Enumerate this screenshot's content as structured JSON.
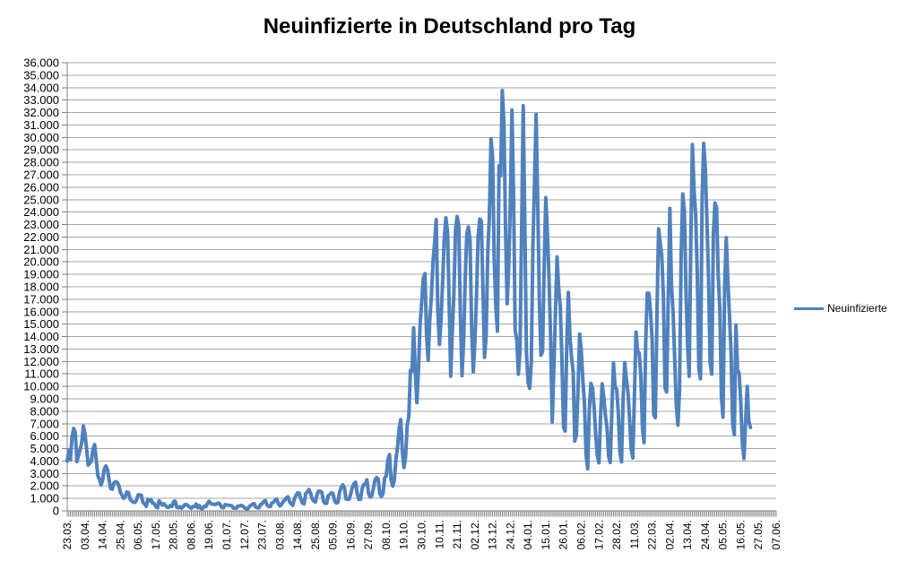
{
  "chart_data": {
    "type": "line",
    "title": "Neuinfizierte in Deutschland pro Tag",
    "legend_position": "right",
    "grid": true,
    "ylim": [
      0,
      36000
    ],
    "ytick_step": 1000,
    "ytick_labels": [
      "36.000",
      "35.000",
      "34.000",
      "33.000",
      "32.000",
      "31.000",
      "30.000",
      "29.000",
      "28.000",
      "27.000",
      "26.000",
      "25.000",
      "24.000",
      "23.000",
      "22.000",
      "21.000",
      "20.000",
      "19.000",
      "18.000",
      "17.000",
      "16.000",
      "15.000",
      "14.000",
      "13.000",
      "12.000",
      "11.000",
      "10.000",
      "9.000",
      "8.000",
      "7.000",
      "6.000",
      "5.000",
      "4.000",
      "3.000",
      "2.000",
      "1.000",
      "0"
    ],
    "xtick_labels": [
      "23.03.",
      "03.04.",
      "14.04.",
      "25.04.",
      "06.05.",
      "17.05.",
      "28.05.",
      "08.06.",
      "19.06.",
      "01.07.",
      "12.07.",
      "23.07.",
      "03.08.",
      "14.08.",
      "25.08.",
      "05.09.",
      "16.09.",
      "27.09.",
      "08.10.",
      "19.10.",
      "30.10.",
      "10.11.",
      "21.11.",
      "02.12.",
      "13.12.",
      "24.12.",
      "04.01.",
      "15.01.",
      "26.01.",
      "06.02.",
      "17.02.",
      "28.02.",
      "11.03.",
      "22.03.",
      "02.04.",
      "13.04.",
      "24.04.",
      "05.05.",
      "16.05.",
      "27.05.",
      "07.06."
    ],
    "xtick_every": 11,
    "x_axis_slots": 441,
    "colors": {
      "line": "#4F81BD",
      "grid": "#A6A6A6",
      "axis": "#808080",
      "text": "#000000"
    },
    "series": [
      {
        "name": "Neuinfizierte",
        "color": "#4F81BD",
        "first_point_label": "23.03.",
        "values": [
          4000,
          4850,
          4120,
          5940,
          6620,
          6300,
          3950,
          4450,
          4920,
          5450,
          6810,
          6170,
          5050,
          3680,
          3830,
          4000,
          4970,
          5320,
          4130,
          2820,
          2540,
          2080,
          2480,
          3380,
          3610,
          3310,
          2460,
          1780,
          1740,
          2240,
          2350,
          2300,
          2040,
          1500,
          1250,
          1000,
          1150,
          1510,
          1480,
          950,
          800,
          700,
          680,
          850,
          1280,
          1290,
          1250,
          670,
          560,
          360,
          930,
          800,
          910,
          620,
          580,
          340,
          240,
          800,
          640,
          460,
          570,
          430,
          290,
          290,
          430,
          360,
          740,
          780,
          290,
          240,
          330,
          210,
          340,
          500,
          510,
          410,
          300,
          210,
          350,
          340,
          550,
          250,
          420,
          190,
          190,
          380,
          340,
          580,
          770,
          600,
          540,
          540,
          500,
          580,
          630,
          480,
          260,
          250,
          500,
          470,
          450,
          440,
          420,
          220,
          240,
          210,
          390,
          400,
          440,
          380,
          250,
          160,
          160,
          350,
          440,
          530,
          580,
          300,
          250,
          240,
          520,
          570,
          770,
          820,
          480,
          340,
          340,
          630,
          680,
          870,
          950,
          580,
          400,
          510,
          740,
          870,
          1050,
          1130,
          720,
          560,
          440,
          970,
          1230,
          1450,
          1420,
          930,
          630,
          560,
          1390,
          1510,
          1710,
          1430,
          990,
          790,
          710,
          1280,
          1580,
          1570,
          1480,
          790,
          610,
          610,
          1220,
          1310,
          1450,
          1380,
          790,
          630,
          680,
          1500,
          1890,
          2090,
          1880,
          950,
          920,
          930,
          1410,
          1900,
          2190,
          2300,
          1350,
          920,
          930,
          1770,
          2120,
          2140,
          2500,
          1410,
          1110,
          1190,
          1800,
          2500,
          2670,
          2560,
          1380,
          1150,
          1380,
          2640,
          2830,
          4060,
          4520,
          2470,
          1980,
          2480,
          4120,
          5130,
          6640,
          7330,
          4720,
          3480,
          4330,
          6870,
          7600,
          11290,
          11240,
          14710,
          11180,
          8690,
          11410,
          14960,
          16770,
          18680,
          19060,
          14180,
          12100,
          15350,
          17210,
          19990,
          21510,
          23400,
          16020,
          13360,
          15330,
          18490,
          21870,
          23540,
          22460,
          16950,
          10820,
          14420,
          17560,
          22610,
          23650,
          22960,
          15740,
          10860,
          13550,
          18630,
          22270,
          22810,
          21700,
          14610,
          11170,
          13600,
          17270,
          22050,
          23450,
          23320,
          17770,
          12330,
          14050,
          20820,
          23680,
          29880,
          28440,
          20200,
          16360,
          14430,
          27730,
          26920,
          33770,
          31300,
          22770,
          16640,
          19530,
          24740,
          32200,
          25530,
          14460,
          13760,
          10980,
          12890,
          22460,
          32550,
          22920,
          12690,
          10320,
          9850,
          11900,
          21240,
          26390,
          31850,
          24690,
          16950,
          12500,
          12800,
          19600,
          25160,
          22370,
          18680,
          13880,
          7140,
          11370,
          15970,
          20400,
          17860,
          16420,
          12260,
          6730,
          6410,
          13200,
          17550,
          14020,
          12320,
          11190,
          5610,
          6110,
          9710,
          14210,
          12910,
          10490,
          8620,
          4540,
          3380,
          8070,
          10240,
          9860,
          8350,
          6110,
          4430,
          3860,
          7560,
          10210,
          9110,
          7680,
          6680,
          4370,
          3880,
          8010,
          11870,
          10000,
          9760,
          7890,
          4730,
          3940,
          9020,
          11910,
          10580,
          9560,
          7350,
          5010,
          4250,
          9150,
          14360,
          12830,
          12670,
          10790,
          6600,
          5480,
          13440,
          17500,
          17480,
          16030,
          13730,
          7710,
          7490,
          15810,
          22660,
          21570,
          20470,
          17180,
          9870,
          9550,
          17050,
          24300,
          18130,
          16000,
          12200,
          8500,
          6890,
          9680,
          20410,
          25460,
          24100,
          17860,
          13250,
          10810,
          21690,
          29430,
          25830,
          23800,
          19190,
          11440,
          10610,
          24880,
          29520,
          27540,
          23390,
          18770,
          11910,
          10980,
          22230,
          24740,
          24330,
          18940,
          16290,
          9160,
          7530,
          18030,
          21950,
          18490,
          15690,
          12660,
          6920,
          6130,
          14910,
          11340,
          11040,
          8770,
          5400,
          4200,
          7100,
          10000,
          7200,
          6700
        ]
      }
    ]
  }
}
